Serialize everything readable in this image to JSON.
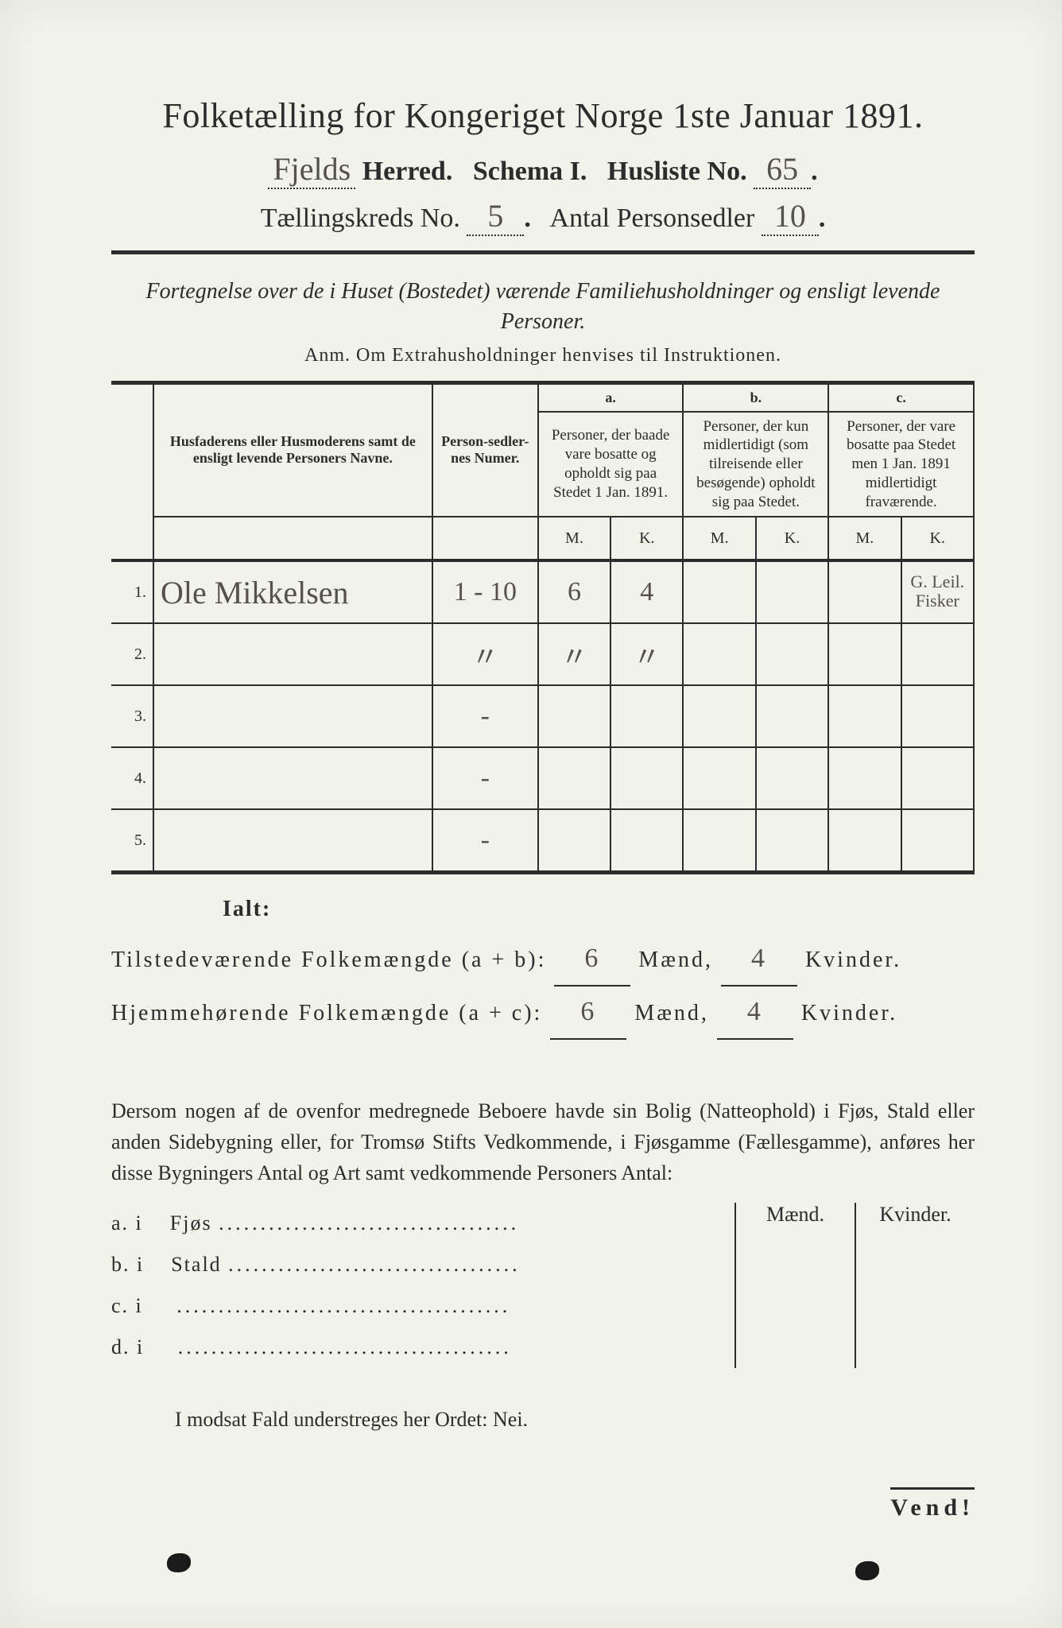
{
  "title": "Folketælling for Kongeriget Norge 1ste Januar 1891.",
  "line2": {
    "herred_value": "Fjelds",
    "herred_label": "Herred.",
    "schema_label": "Schema I.",
    "husliste_label": "Husliste No.",
    "husliste_value": "65"
  },
  "line3": {
    "kreds_label": "Tællingskreds No.",
    "kreds_value": "5",
    "antal_label": "Antal Personsedler",
    "antal_value": "10"
  },
  "subtitle": "Fortegnelse over de i Huset (Bostedet) værende Familiehusholdninger og ensligt levende Personer.",
  "anm": "Anm.   Om Extrahusholdninger henvises til Instruktionen.",
  "table": {
    "top": {
      "a": "a.",
      "b": "b.",
      "c": "c."
    },
    "head": {
      "name": "Husfaderens eller Husmoderens samt de ensligt levende Personers Navne.",
      "numer": "Person-sedler-nes Numer.",
      "a": "Personer, der baade vare bosatte og opholdt sig paa Stedet 1 Jan. 1891.",
      "b": "Personer, der kun midlertidigt (som tilreisende eller besøgende) opholdt sig paa Stedet.",
      "c": "Personer, der vare bosatte paa Stedet men 1 Jan. 1891 midlertidigt fraværende."
    },
    "mk": {
      "m": "M.",
      "k": "K."
    },
    "rows": [
      {
        "n": "1.",
        "name": "Ole Mikkelsen",
        "numer": "1 - 10",
        "a_m": "6",
        "a_k": "4",
        "b_m": "",
        "b_k": "",
        "c_m": "",
        "c_k": "G. Leil. Fisker"
      },
      {
        "n": "2.",
        "name": "",
        "numer": "〃",
        "a_m": "〃",
        "a_k": "〃",
        "b_m": "",
        "b_k": "",
        "c_m": "",
        "c_k": ""
      },
      {
        "n": "3.",
        "name": "",
        "numer": "-",
        "a_m": "",
        "a_k": "",
        "b_m": "",
        "b_k": "",
        "c_m": "",
        "c_k": ""
      },
      {
        "n": "4.",
        "name": "",
        "numer": "-",
        "a_m": "",
        "a_k": "",
        "b_m": "",
        "b_k": "",
        "c_m": "",
        "c_k": ""
      },
      {
        "n": "5.",
        "name": "",
        "numer": "-",
        "a_m": "",
        "a_k": "",
        "b_m": "",
        "b_k": "",
        "c_m": "",
        "c_k": ""
      }
    ]
  },
  "ialt": "Ialt:",
  "totals": {
    "t1_label": "Tilstedeværende Folkemængde (a + b):",
    "t1_m": "6",
    "t1_k": "4",
    "t2_label": "Hjemmehørende Folkemængde (a + c):",
    "t2_m": "6",
    "t2_k": "4",
    "maend": "Mænd,",
    "kvinder": "Kvinder."
  },
  "para": "Dersom nogen af de ovenfor medregnede Beboere havde sin Bolig (Natteophold) i Fjøs, Stald eller anden Sidebygning eller, for Tromsø Stifts Vedkommende, i Fjøsgamme (Fællesgamme), anføres her disse Bygningers Antal og Art samt vedkommende Personers Antal:",
  "mkhead": {
    "m": "Mænd.",
    "k": "Kvinder."
  },
  "abcd": [
    {
      "k": "a.  i",
      "t": "Fjøs"
    },
    {
      "k": "b.  i",
      "t": "Stald"
    },
    {
      "k": "c.  i",
      "t": ""
    },
    {
      "k": "d.  i",
      "t": ""
    }
  ],
  "nei": "I modsat Fald understreges her Ordet: Nei.",
  "vend": "Vend!",
  "colors": {
    "page_bg": "#f1f2e9",
    "ink": "#2c2c2c",
    "handwriting": "#575249"
  }
}
